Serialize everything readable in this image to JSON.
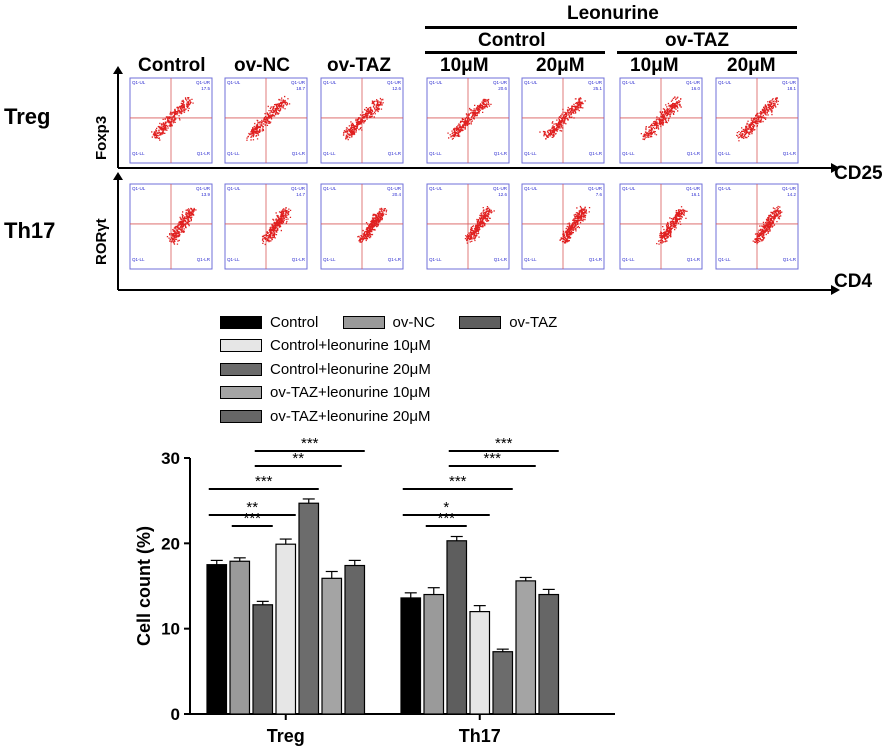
{
  "flow": {
    "leonurine_label": "Leonurine",
    "top_headers": [
      "Control",
      "ov-NC",
      "ov-TAZ"
    ],
    "group_headers": [
      "Control",
      "ov-TAZ"
    ],
    "conc_headers": [
      "10μM",
      "20μM",
      "10μM",
      "20μM"
    ],
    "rows": [
      {
        "label": "Treg",
        "y_axis": "Foxp3",
        "x_axis": "CD25"
      },
      {
        "label": "Th17",
        "y_axis": "RORγt",
        "x_axis": "CD4"
      }
    ],
    "quadrant_labels": [
      "Q1-UL",
      "Q1-UR",
      "Q1-LL",
      "Q1-LR"
    ],
    "treg_ur_values": [
      "17.5",
      "18.7",
      "12.6",
      "20.6",
      "25.1",
      "16.0",
      "18.1"
    ],
    "th17_ur_values": [
      "13.9",
      "14.7",
      "20.4",
      "12.6",
      "7.6",
      "16.1",
      "14.2"
    ]
  },
  "legend": [
    {
      "label": "Control",
      "color": "#000000"
    },
    {
      "label": "ov-NC",
      "color": "#9a9a9a"
    },
    {
      "label": "ov-TAZ",
      "color": "#5e5e5e"
    },
    {
      "label": "Control+leonurine 10μM",
      "color": "#e6e6e6"
    },
    {
      "label": "Control+leonurine 20μM",
      "color": "#6c6c6c"
    },
    {
      "label": "ov-TAZ+leonurine 10μM",
      "color": "#a4a4a4"
    },
    {
      "label": "ov-TAZ+leonurine 20μM",
      "color": "#666666"
    }
  ],
  "chart_data": {
    "type": "bar",
    "title": "",
    "xlabel": "",
    "ylabel": "Cell count (%)",
    "ylim": [
      0,
      30
    ],
    "yticks": [
      "0",
      "10",
      "20",
      "30"
    ],
    "categories": [
      "Treg",
      "Th17"
    ],
    "series": [
      {
        "name": "Control",
        "color": "#000000",
        "values": [
          17.5,
          13.6
        ],
        "errors": [
          0.5,
          0.6
        ]
      },
      {
        "name": "ov-NC",
        "color": "#9a9a9a",
        "values": [
          17.9,
          14.0
        ],
        "errors": [
          0.4,
          0.8
        ]
      },
      {
        "name": "ov-TAZ",
        "color": "#5e5e5e",
        "values": [
          12.8,
          20.3
        ],
        "errors": [
          0.4,
          0.5
        ]
      },
      {
        "name": "Control+leonurine 10μM",
        "color": "#e6e6e6",
        "values": [
          19.9,
          12.0
        ],
        "errors": [
          0.6,
          0.7
        ]
      },
      {
        "name": "Control+leonurine 20μM",
        "color": "#6c6c6c",
        "values": [
          24.7,
          7.3
        ],
        "errors": [
          0.5,
          0.3
        ]
      },
      {
        "name": "ov-TAZ+leonurine 10μM",
        "color": "#a4a4a4",
        "values": [
          15.9,
          15.6
        ],
        "errors": [
          0.8,
          0.4
        ]
      },
      {
        "name": "ov-TAZ+leonurine 20μM",
        "color": "#666666",
        "values": [
          17.4,
          14.0
        ],
        "errors": [
          0.6,
          0.6
        ]
      }
    ],
    "significance": [
      {
        "category": "Treg",
        "from": 1,
        "to": 2,
        "label": "***",
        "level": 0
      },
      {
        "category": "Treg",
        "from": 0,
        "to": 3,
        "label": "**",
        "level": 1
      },
      {
        "category": "Treg",
        "from": 0,
        "to": 4,
        "label": "***",
        "level": 2
      },
      {
        "category": "Treg",
        "from": 2,
        "to": 5,
        "label": "**",
        "level": 3
      },
      {
        "category": "Treg",
        "from": 2,
        "to": 6,
        "label": "***",
        "level": 4
      },
      {
        "category": "Th17",
        "from": 1,
        "to": 2,
        "label": "***",
        "level": 0
      },
      {
        "category": "Th17",
        "from": 0,
        "to": 3,
        "label": "*",
        "level": 1
      },
      {
        "category": "Th17",
        "from": 0,
        "to": 4,
        "label": "***",
        "level": 2
      },
      {
        "category": "Th17",
        "from": 2,
        "to": 5,
        "label": "***",
        "level": 3
      },
      {
        "category": "Th17",
        "from": 2,
        "to": 6,
        "label": "***",
        "level": 4
      }
    ]
  }
}
